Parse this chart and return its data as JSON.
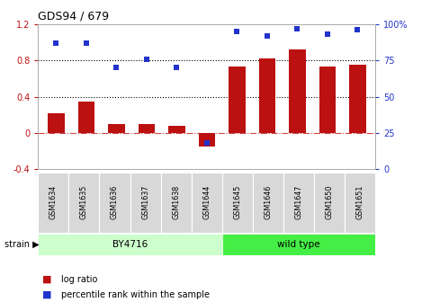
{
  "title": "GDS94 / 679",
  "samples": [
    "GSM1634",
    "GSM1635",
    "GSM1636",
    "GSM1637",
    "GSM1638",
    "GSM1644",
    "GSM1645",
    "GSM1646",
    "GSM1647",
    "GSM1650",
    "GSM1651"
  ],
  "log_ratio": [
    0.22,
    0.35,
    0.1,
    0.1,
    0.08,
    -0.15,
    0.73,
    0.82,
    0.92,
    0.73,
    0.75
  ],
  "percentile": [
    87,
    87,
    70,
    76,
    70,
    18,
    95,
    92,
    97,
    93,
    96
  ],
  "bar_color": "#bb1111",
  "dot_color": "#2233cc",
  "strain_groups": [
    {
      "label": "BY4716",
      "start": 0,
      "end": 6,
      "color": "#ccffcc"
    },
    {
      "label": "wild type",
      "start": 6,
      "end": 11,
      "color": "#44ee44"
    }
  ],
  "ylim_left": [
    -0.4,
    1.2
  ],
  "ylim_right": [
    0,
    100
  ],
  "yticks_left": [
    -0.4,
    0.0,
    0.4,
    0.8,
    1.2
  ],
  "ytick_labels_left": [
    "-0.4",
    "0",
    "0.4",
    "0.8",
    "1.2"
  ],
  "yticks_right": [
    0,
    25,
    50,
    75,
    100
  ],
  "ytick_labels_right": [
    "0",
    "25",
    "50",
    "75",
    "100%"
  ],
  "hlines": [
    0.4,
    0.8
  ],
  "zero_line_color": "#cc4444",
  "background_color": "#ffffff"
}
